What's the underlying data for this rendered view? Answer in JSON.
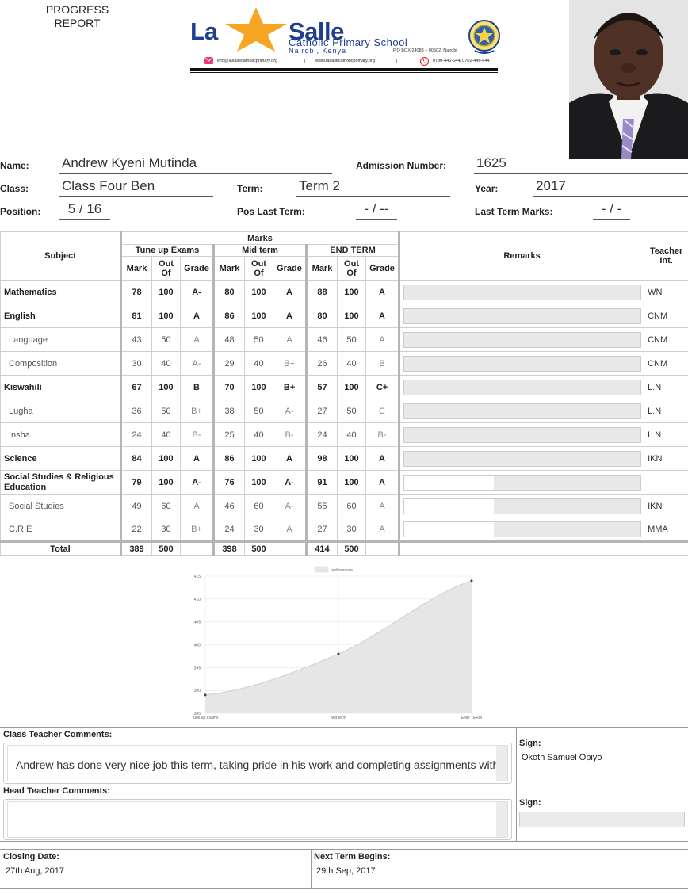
{
  "header": {
    "report_title_line1": "PROGRESS",
    "report_title_line2": "REPORT",
    "logo_la": "La",
    "logo_salle": "Salle",
    "school_name": "Catholic Primary School",
    "school_city": "Nairobi, Kenya",
    "po_box": "P.O BOX 24083 – 00502, Nairobi",
    "email": "info@lasallecatholicprimary.org",
    "website": "www.lasallecatholicprimary.org",
    "phone": "0780-446-644/ 0702-446-644",
    "separator": "|",
    "colors": {
      "brand_blue": "#1f3e8f",
      "star": "#f6a623",
      "email_icon": "#e63c7a",
      "phone_icon": "#e03030"
    },
    "icons": [
      "star-icon",
      "crest-icon",
      "email-icon",
      "phone-icon",
      "student-photo"
    ]
  },
  "student": {
    "name_label": "Name:",
    "name": "Andrew Kyeni Mutinda",
    "admission_label": "Admission Number:",
    "admission": "1625",
    "class_label": "Class:",
    "class": "Class Four Ben",
    "term_label": "Term:",
    "term": "Term 2",
    "year_label": "Year:",
    "year": "2017",
    "position_label": "Position:",
    "position": "5 / 16",
    "pos_last_label": "Pos Last Term:",
    "pos_last": "- / --",
    "last_marks_label": "Last Term Marks:",
    "last_marks": "- / -"
  },
  "table": {
    "headers": {
      "subject": "Subject",
      "marks": "Marks",
      "remarks": "Remarks",
      "teacher_line1": "Teacher",
      "teacher_line2": "Int.",
      "exam1": "Tune up Exams",
      "exam2": "Mid term",
      "exam3": "END TERM",
      "mark": "Mark",
      "out_line1": "Out",
      "out_line2": "Of",
      "grade": "Grade"
    },
    "rows": [
      {
        "subject": "Mathematics",
        "level": 1,
        "m1": "78",
        "o1": "100",
        "g1": "A-",
        "m2": "80",
        "o2": "100",
        "g2": "A",
        "m3": "88",
        "o3": "100",
        "g3": "A",
        "teacher": "WN"
      },
      {
        "subject": "English",
        "level": 1,
        "m1": "81",
        "o1": "100",
        "g1": "A",
        "m2": "86",
        "o2": "100",
        "g2": "A",
        "m3": "80",
        "o3": "100",
        "g3": "A",
        "teacher": "CNM"
      },
      {
        "subject": "Language",
        "level": 2,
        "m1": "43",
        "o1": "50",
        "g1": "A",
        "m2": "48",
        "o2": "50",
        "g2": "A",
        "m3": "46",
        "o3": "50",
        "g3": "A",
        "teacher": "CNM"
      },
      {
        "subject": "Composition",
        "level": 2,
        "m1": "30",
        "o1": "40",
        "g1": "A-",
        "m2": "29",
        "o2": "40",
        "g2": "B+",
        "m3": "26",
        "o3": "40",
        "g3": "B",
        "teacher": "CNM"
      },
      {
        "subject": "Kiswahili",
        "level": 1,
        "m1": "67",
        "o1": "100",
        "g1": "B",
        "m2": "70",
        "o2": "100",
        "g2": "B+",
        "m3": "57",
        "o3": "100",
        "g3": "C+",
        "teacher": "L.N"
      },
      {
        "subject": "Lugha",
        "level": 2,
        "m1": "36",
        "o1": "50",
        "g1": "B+",
        "m2": "38",
        "o2": "50",
        "g2": "A-",
        "m3": "27",
        "o3": "50",
        "g3": "C",
        "teacher": "L.N"
      },
      {
        "subject": "Insha",
        "level": 2,
        "m1": "24",
        "o1": "40",
        "g1": "B-",
        "m2": "25",
        "o2": "40",
        "g2": "B-",
        "m3": "24",
        "o3": "40",
        "g3": "B-",
        "teacher": "L.N"
      },
      {
        "subject": "Science",
        "level": 1,
        "m1": "84",
        "o1": "100",
        "g1": "A",
        "m2": "86",
        "o2": "100",
        "g2": "A",
        "m3": "98",
        "o3": "100",
        "g3": "A",
        "teacher": "IKN"
      },
      {
        "subject": "Social Studies & Religious Education",
        "level": 1,
        "m1": "79",
        "o1": "100",
        "g1": "A-",
        "m2": "76",
        "o2": "100",
        "g2": "A-",
        "m3": "91",
        "o3": "100",
        "g3": "A",
        "teacher": ""
      },
      {
        "subject": "Social Studies",
        "level": 2,
        "m1": "49",
        "o1": "60",
        "g1": "A",
        "m2": "46",
        "o2": "60",
        "g2": "A-",
        "m3": "55",
        "o3": "60",
        "g3": "A",
        "teacher": "IKN"
      },
      {
        "subject": "C.R.E",
        "level": 2,
        "m1": "22",
        "o1": "30",
        "g1": "B+",
        "m2": "24",
        "o2": "30",
        "g2": "A",
        "m3": "27",
        "o3": "30",
        "g3": "A",
        "teacher": "MMA"
      }
    ],
    "total": {
      "label": "Total",
      "m1": "389",
      "o1": "500",
      "m2": "398",
      "o2": "500",
      "m3": "414",
      "o3": "500"
    }
  },
  "chart_data": {
    "type": "area",
    "categories": [
      "tune up exams",
      "Mid term",
      "END TERM"
    ],
    "series": [
      {
        "name": "performance",
        "values": [
          389,
          398,
          414
        ]
      }
    ],
    "ylim": [
      385,
      415
    ],
    "yticks": [
      "385",
      "390",
      "395",
      "400",
      "405",
      "410",
      "415"
    ],
    "grid": true,
    "legend": "top",
    "fill_color": "#e6e6e6",
    "line_color": "#d0d0d0",
    "point_color": "#2a4a5a"
  },
  "comments": {
    "class_teacher_label": "Class Teacher Comments:",
    "class_teacher_text": "Andrew has done very nice job this term, taking pride in his work and completing assignments with",
    "head_teacher_label": "Head Teacher Comments:",
    "head_teacher_text": "",
    "sign_label": "Sign:",
    "class_teacher_sign": "Okoth Samuel Opiyo",
    "closing_label": "Closing Date:",
    "closing_date": "27th Aug, 2017",
    "next_term_label": "Next Term Begins:",
    "next_term_date": "29th Sep, 2017"
  }
}
